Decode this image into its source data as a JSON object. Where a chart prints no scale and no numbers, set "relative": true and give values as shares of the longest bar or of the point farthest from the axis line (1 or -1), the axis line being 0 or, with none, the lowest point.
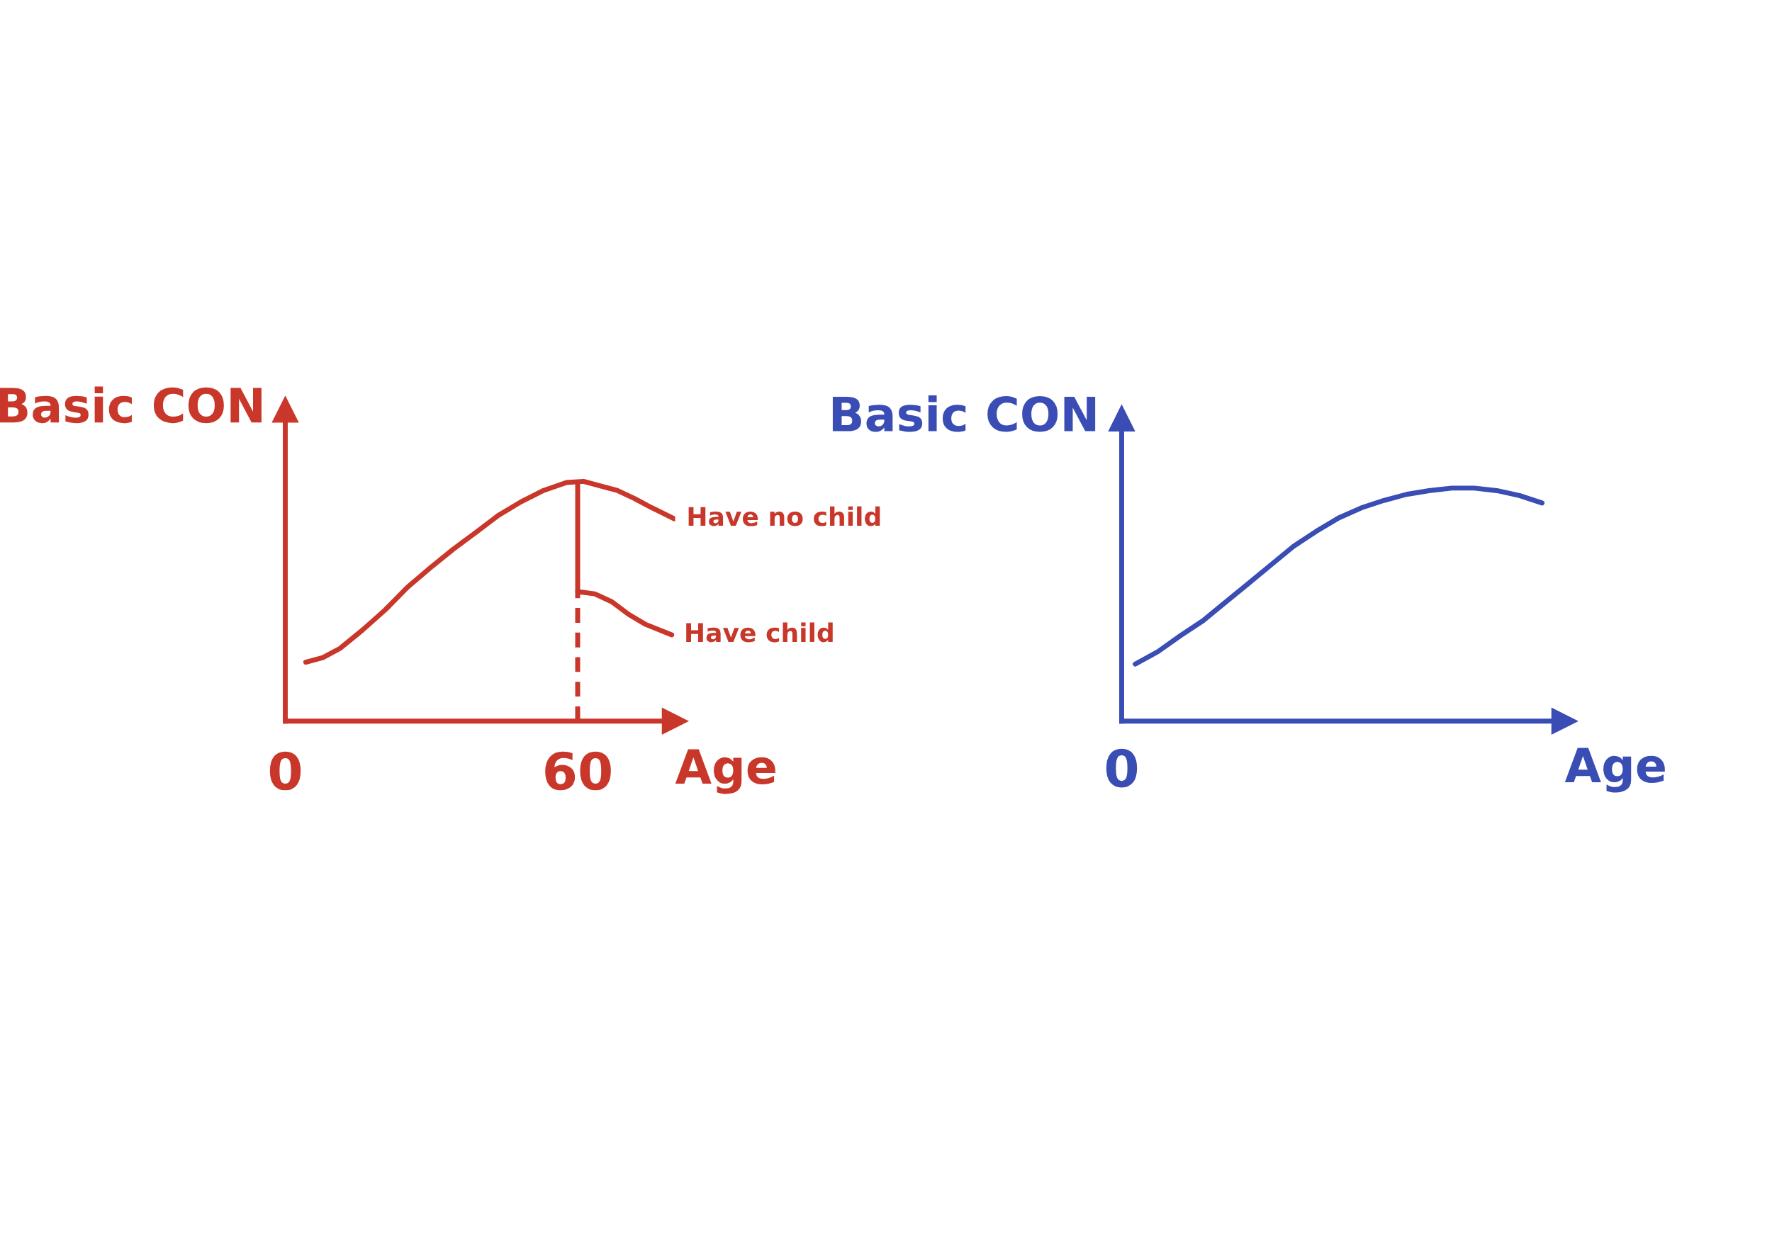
{
  "chart_data": [
    {
      "type": "line",
      "relative": true,
      "xlabel": "Age",
      "ylabel": "Basic CON",
      "xlim": [
        0,
        80
      ],
      "xticks": [
        0,
        60
      ],
      "grid": false,
      "legend": false,
      "marker": "none",
      "line_style": "solid",
      "ref_lines": [
        {
          "axis": "x",
          "value": 60,
          "color": "#c8372a",
          "line_style": "dashed"
        },
        {
          "axis": "x",
          "value": 60,
          "color": "#c8372a",
          "line_style": "solid"
        }
      ],
      "series": [
        {
          "name": "Have no child",
          "color": "#c8372a",
          "x": [
            4.2,
            7.7,
            11.2,
            15.8,
            20.5,
            25.1,
            29.8,
            34.4,
            39.1,
            43.7,
            48.4,
            53.0,
            57.7,
            61.2,
            64.7,
            68.1,
            71.6,
            75.1,
            79.8
          ],
          "values": [
            0.246,
            0.265,
            0.303,
            0.379,
            0.464,
            0.559,
            0.64,
            0.716,
            0.787,
            0.858,
            0.915,
            0.962,
            0.995,
            1,
            0.981,
            0.962,
            0.929,
            0.891,
            0.844
          ]
        },
        {
          "name": "Have child",
          "color": "#c8372a",
          "x": [
            60,
            63.5,
            67,
            70.5,
            74,
            79.3
          ],
          "values": [
            0.54,
            0.531,
            0.498,
            0.445,
            0.403,
            0.36
          ]
        }
      ]
    },
    {
      "type": "line",
      "relative": true,
      "xlabel": "Age",
      "ylabel": "Basic CON",
      "grid": false,
      "legend": false,
      "marker": "none",
      "line_style": "solid",
      "annotations": [
        "0"
      ],
      "categories": [
        null,
        null,
        null,
        null,
        null,
        null,
        null,
        null,
        null,
        null,
        null,
        null,
        null,
        null,
        null,
        null,
        null,
        null,
        null
      ],
      "series": [
        {
          "color": "#3a4db5",
          "values": [
            0.245,
            0.298,
            0.367,
            0.431,
            0.511,
            0.59,
            0.67,
            0.75,
            0.814,
            0.872,
            0.915,
            0.947,
            0.973,
            0.989,
            1,
            1,
            0.989,
            0.968,
            0.936
          ]
        }
      ]
    }
  ]
}
